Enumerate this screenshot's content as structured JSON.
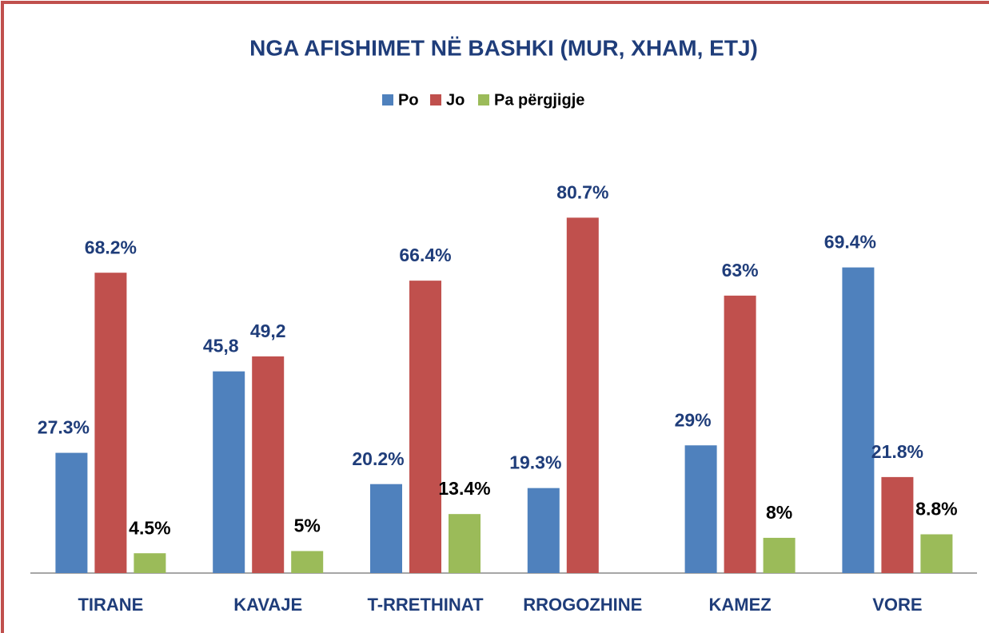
{
  "chart_data": {
    "type": "bar",
    "title": "NGA AFISHIMET NË BASHKI (MUR, XHAM, ETJ)",
    "categories": [
      "TIRANE",
      "KAVAJE",
      "T-RRETHINAT",
      "RROGOZHINE",
      "KAMEZ",
      "VORE"
    ],
    "series": [
      {
        "name": "Po",
        "color": "#4f81bd",
        "values": [
          27.3,
          45.8,
          20.2,
          19.3,
          29,
          69.4
        ],
        "value_labels": [
          "27.3%",
          "45,8",
          "20.2%",
          "19.3%",
          "29%",
          "69.4%"
        ]
      },
      {
        "name": "Jo",
        "color": "#c0504d",
        "values": [
          68.2,
          49.2,
          66.4,
          80.7,
          63,
          21.8
        ],
        "value_labels": [
          "68.2%",
          "49,2",
          "66.4%",
          "80.7%",
          "63%",
          "21.8%"
        ]
      },
      {
        "name": "Pa përgjigje",
        "color": "#9bbb59",
        "values": [
          4.5,
          5,
          13.4,
          null,
          8,
          8.8
        ],
        "value_labels": [
          "4.5%",
          "5%",
          "13.4%",
          null,
          "8%",
          "8.8%"
        ]
      }
    ],
    "legend": "top"
  }
}
